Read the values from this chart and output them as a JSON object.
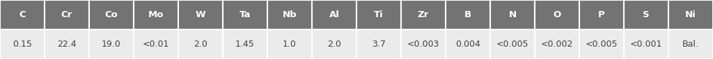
{
  "headers": [
    "C",
    "Cr",
    "Co",
    "Mo",
    "W",
    "Ta",
    "Nb",
    "Al",
    "Ti",
    "Zr",
    "B",
    "N",
    "O",
    "P",
    "S",
    "Ni"
  ],
  "values": [
    "0.15",
    "22.4",
    "19.0",
    "<0.01",
    "2.0",
    "1.45",
    "1.0",
    "2.0",
    "3.7",
    "<0.003",
    "0.004",
    "<0.005",
    "<0.002",
    "<0.005",
    "<0.001",
    "Bal."
  ],
  "header_bg": "#737373",
  "header_text": "#ffffff",
  "row_bg": "#ebebeb",
  "row_text": "#404040",
  "border_color": "#ffffff",
  "header_fontsize": 9.5,
  "value_fontsize": 9.0,
  "fig_width": 10.24,
  "fig_height": 0.86,
  "fig_bg": "#ffffff"
}
